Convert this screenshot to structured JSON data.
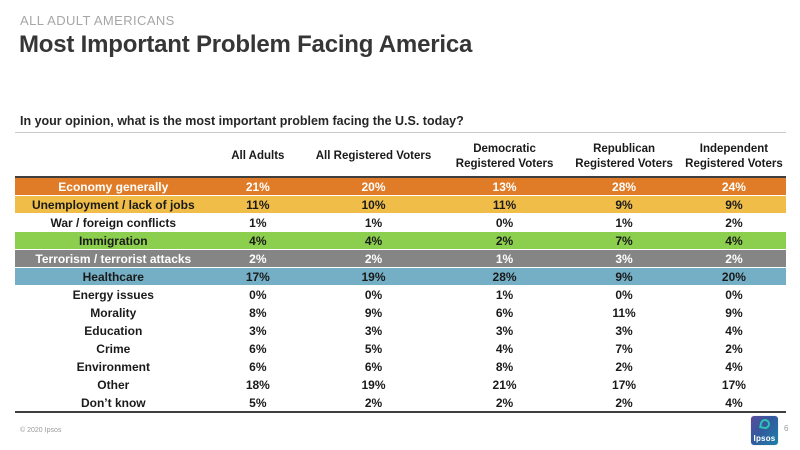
{
  "slide": {
    "eyebrow": "ALL ADULT AMERICANS",
    "title": "Most Important Problem Facing America",
    "question": "In your opinion, what is the most important problem facing the U.S. today?",
    "footer": {
      "copyright": "© 2020 Ipsos",
      "page_number": "6",
      "logo_text": "Ipsos"
    }
  },
  "colors": {
    "eyebrow_gray": "#A6A6A6",
    "title_dark": "#363636",
    "table_border_dark": "#3F3F3F",
    "economy_orange": "#E07C28",
    "unemployment_yellow": "#F0BE48",
    "immigration_green": "#8CCE4E",
    "terrorism_gray": "#858585",
    "healthcare_blue": "#74AFC6",
    "logo_blue": "#315A9E",
    "logo_teal": "#2FC1B2"
  },
  "chart_data": {
    "type": "table",
    "title": "Most Important Problem Facing America",
    "subtitle": "ALL ADULT AMERICANS",
    "question": "In your opinion, what is the most important problem facing the U.S. today?",
    "value_unit": "percent",
    "columns": [
      "All Adults",
      "All Registered Voters",
      "Democratic Registered Voters",
      "Republican Registered Voters",
      "Independent Registered Voters"
    ],
    "rows": [
      {
        "label": "Economy generally",
        "values": [
          "21%",
          "20%",
          "13%",
          "28%",
          "24%"
        ],
        "bg": "#E07C28",
        "fg": "#FFFFFF"
      },
      {
        "label": "Unemployment / lack of jobs",
        "values": [
          "11%",
          "10%",
          "11%",
          "9%",
          "9%"
        ],
        "bg": "#F0BE48",
        "fg": "#1A1A1A"
      },
      {
        "label": "War / foreign conflicts",
        "values": [
          "1%",
          "1%",
          "0%",
          "1%",
          "2%"
        ],
        "bg": "#FFFFFF",
        "fg": "#1A1A1A"
      },
      {
        "label": "Immigration",
        "values": [
          "4%",
          "4%",
          "2%",
          "7%",
          "4%"
        ],
        "bg": "#8CCE4E",
        "fg": "#1A1A1A"
      },
      {
        "label": "Terrorism / terrorist attacks",
        "values": [
          "2%",
          "2%",
          "1%",
          "3%",
          "2%"
        ],
        "bg": "#858585",
        "fg": "#FFFFFF"
      },
      {
        "label": "Healthcare",
        "values": [
          "17%",
          "19%",
          "28%",
          "9%",
          "20%"
        ],
        "bg": "#74AFC6",
        "fg": "#1A1A1A"
      },
      {
        "label": "Energy issues",
        "values": [
          "0%",
          "0%",
          "1%",
          "0%",
          "0%"
        ],
        "bg": "#FFFFFF",
        "fg": "#1A1A1A"
      },
      {
        "label": "Morality",
        "values": [
          "8%",
          "9%",
          "6%",
          "11%",
          "9%"
        ],
        "bg": "#FFFFFF",
        "fg": "#1A1A1A"
      },
      {
        "label": "Education",
        "values": [
          "3%",
          "3%",
          "3%",
          "3%",
          "4%"
        ],
        "bg": "#FFFFFF",
        "fg": "#1A1A1A"
      },
      {
        "label": "Crime",
        "values": [
          "6%",
          "5%",
          "4%",
          "7%",
          "2%"
        ],
        "bg": "#FFFFFF",
        "fg": "#1A1A1A"
      },
      {
        "label": "Environment",
        "values": [
          "6%",
          "6%",
          "8%",
          "2%",
          "4%"
        ],
        "bg": "#FFFFFF",
        "fg": "#1A1A1A"
      },
      {
        "label": "Other",
        "values": [
          "18%",
          "19%",
          "21%",
          "17%",
          "17%"
        ],
        "bg": "#FFFFFF",
        "fg": "#1A1A1A"
      },
      {
        "label": "Don’t know",
        "values": [
          "5%",
          "2%",
          "2%",
          "2%",
          "4%"
        ],
        "bg": "#FFFFFF",
        "fg": "#1A1A1A"
      }
    ],
    "column_widths_percent": [
      25.5,
      12,
      18,
      16,
      15,
      13.5
    ],
    "layout": {
      "grid": false,
      "legend": "none",
      "row_label_alignment": "center"
    }
  }
}
